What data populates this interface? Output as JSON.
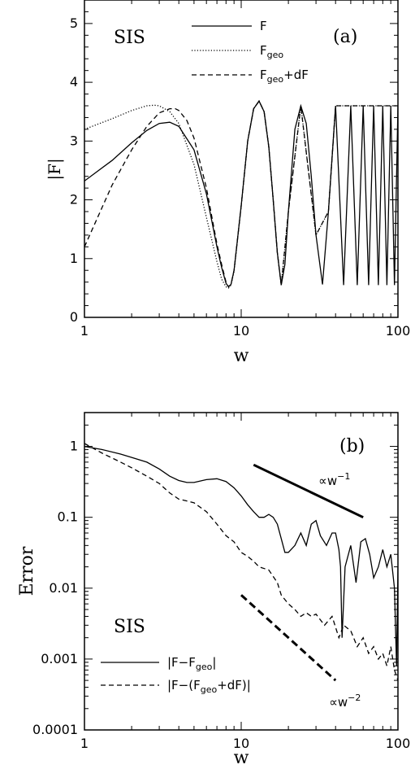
{
  "chart_data": [
    {
      "type": "line",
      "panel_label": "(a)",
      "annotation": "SIS",
      "xlabel": "w",
      "ylabel": "|F|",
      "xscale": "log",
      "xlim": [
        1,
        100
      ],
      "ylim": [
        0,
        5.4
      ],
      "xticks": [
        1,
        10,
        100
      ],
      "xtick_labels": [
        "1",
        "10",
        "100"
      ],
      "yticks": [
        0,
        1,
        2,
        3,
        4,
        5
      ],
      "ytick_labels": [
        "0",
        "1",
        "2",
        "3",
        "4",
        "5"
      ],
      "legend_position": "top-right",
      "series": [
        {
          "name": "F",
          "legend": {
            "main": "F",
            "sub": "",
            "tail": ""
          },
          "style": "solid",
          "x": [
            1,
            1.5,
            2,
            2.5,
            3,
            3.5,
            4,
            5,
            6,
            7,
            7.5,
            8,
            8.3,
            8.6,
            9,
            10,
            11,
            12,
            13,
            14,
            15,
            16,
            17,
            18,
            19,
            20,
            22,
            24,
            26,
            28,
            30,
            33,
            36,
            40,
            45,
            50,
            55,
            60,
            65,
            70,
            75,
            80,
            85,
            90,
            95,
            100
          ],
          "y": [
            2.32,
            2.67,
            2.97,
            3.18,
            3.3,
            3.32,
            3.25,
            2.85,
            2.1,
            1.2,
            0.85,
            0.58,
            0.52,
            0.56,
            0.8,
            1.9,
            3.0,
            3.55,
            3.68,
            3.5,
            2.9,
            2.0,
            1.1,
            0.55,
            0.9,
            1.8,
            3.2,
            3.6,
            3.3,
            2.4,
            1.4,
            0.56,
            1.8,
            3.6,
            0.55,
            3.6,
            0.55,
            3.6,
            0.55,
            3.6,
            0.55,
            3.6,
            0.55,
            3.6,
            0.55,
            3.6
          ]
        },
        {
          "name": "Fgeo",
          "legend": {
            "main": "F",
            "sub": "geo",
            "tail": ""
          },
          "style": "dotted",
          "x": [
            1,
            1.5,
            2,
            2.5,
            2.8,
            3,
            3.5,
            4,
            5,
            6,
            7,
            7.5,
            8,
            8.3,
            8.6,
            9,
            10,
            11,
            12,
            13,
            14,
            15,
            16,
            17,
            18,
            20,
            24,
            30,
            36,
            40,
            50,
            60,
            70,
            80,
            90,
            100
          ],
          "y": [
            3.2,
            3.38,
            3.52,
            3.6,
            3.61,
            3.6,
            3.5,
            3.3,
            2.6,
            1.7,
            0.95,
            0.65,
            0.52,
            0.5,
            0.55,
            0.78,
            1.9,
            3.0,
            3.55,
            3.68,
            3.5,
            2.9,
            2.0,
            1.1,
            0.55,
            1.8,
            3.6,
            1.4,
            1.8,
            3.6,
            3.6,
            3.6,
            3.6,
            3.6,
            3.6,
            3.6
          ]
        },
        {
          "name": "Fgeo+dF",
          "legend": {
            "main": "F",
            "sub": "geo",
            "tail": "+dF"
          },
          "style": "dashed",
          "x": [
            1,
            1.5,
            2,
            2.5,
            3,
            3.5,
            3.8,
            4,
            4.5,
            5,
            6,
            7,
            7.5,
            8,
            8.3,
            8.6,
            9,
            10,
            11,
            12,
            13,
            14,
            15,
            16,
            17,
            18,
            20,
            24,
            30,
            36,
            40,
            50,
            60,
            70,
            80,
            90,
            100
          ],
          "y": [
            1.2,
            2.25,
            2.85,
            3.25,
            3.48,
            3.55,
            3.55,
            3.52,
            3.35,
            3.05,
            2.2,
            1.25,
            0.9,
            0.6,
            0.52,
            0.56,
            0.8,
            1.9,
            3.0,
            3.55,
            3.68,
            3.5,
            2.9,
            2.0,
            1.1,
            0.55,
            1.8,
            3.6,
            1.4,
            1.8,
            3.6,
            3.6,
            3.6,
            3.6,
            3.6,
            3.6,
            3.6
          ]
        }
      ]
    },
    {
      "type": "line",
      "panel_label": "(b)",
      "annotation": "SIS",
      "xlabel": "w",
      "ylabel": "Error",
      "xscale": "log",
      "yscale": "log",
      "xlim": [
        1,
        100
      ],
      "ylim": [
        0.0001,
        3
      ],
      "xticks": [
        1,
        10,
        100
      ],
      "xtick_labels": [
        "1",
        "10",
        "100"
      ],
      "yticks": [
        0.0001,
        0.001,
        0.01,
        0.1,
        1
      ],
      "ytick_labels": [
        "0.0001",
        "0.001",
        "0.01",
        "0.1",
        "1"
      ],
      "legend_position": "bottom-left",
      "series": [
        {
          "name": "|F-Fgeo|",
          "legend": {
            "main": "|F−F",
            "sub": "geo",
            "tail": "|"
          },
          "style": "solid",
          "x": [
            1,
            1.3,
            1.7,
            2,
            2.5,
            3,
            3.5,
            4,
            4.5,
            5,
            6,
            7,
            8,
            9,
            10,
            11,
            12,
            13,
            14,
            15,
            16,
            17,
            18,
            19,
            20,
            22,
            24,
            26,
            28,
            30,
            32,
            35,
            38,
            40,
            42,
            43,
            44,
            46,
            50,
            54,
            58,
            62,
            66,
            70,
            75,
            80,
            85,
            90,
            95,
            98,
            100
          ],
          "y": [
            1.0,
            0.9,
            0.78,
            0.7,
            0.6,
            0.48,
            0.38,
            0.33,
            0.31,
            0.31,
            0.34,
            0.35,
            0.32,
            0.26,
            0.2,
            0.15,
            0.12,
            0.1,
            0.1,
            0.11,
            0.1,
            0.08,
            0.05,
            0.032,
            0.032,
            0.04,
            0.06,
            0.04,
            0.08,
            0.09,
            0.055,
            0.04,
            0.06,
            0.06,
            0.035,
            0.02,
            0.002,
            0.02,
            0.04,
            0.012,
            0.045,
            0.05,
            0.03,
            0.014,
            0.02,
            0.035,
            0.02,
            0.03,
            0.01,
            0.0008,
            0.02
          ]
        },
        {
          "name": "|F-(Fgeo+dF)|",
          "legend": {
            "main": "|F−(F",
            "sub": "geo",
            "tail": "+dF)|"
          },
          "style": "dashed",
          "x": [
            1,
            1.3,
            1.7,
            2,
            2.5,
            3,
            3.5,
            4,
            4.5,
            5,
            6,
            7,
            8,
            9,
            10,
            11,
            12,
            13,
            15,
            17,
            18,
            20,
            22,
            24,
            26,
            28,
            30,
            34,
            38,
            42,
            45,
            50,
            55,
            60,
            65,
            70,
            75,
            80,
            85,
            90,
            95,
            100
          ],
          "y": [
            1.1,
            0.8,
            0.6,
            0.5,
            0.38,
            0.3,
            0.22,
            0.18,
            0.17,
            0.16,
            0.12,
            0.08,
            0.055,
            0.045,
            0.032,
            0.028,
            0.024,
            0.02,
            0.018,
            0.012,
            0.008,
            0.006,
            0.005,
            0.004,
            0.0045,
            0.004,
            0.0043,
            0.003,
            0.004,
            0.002,
            0.003,
            0.0025,
            0.0015,
            0.002,
            0.0012,
            0.0015,
            0.001,
            0.0012,
            0.0008,
            0.0015,
            0.0007,
            0.0005
          ]
        }
      ],
      "reference_lines": [
        {
          "label": {
            "main": "∝w",
            "sup": "−1"
          },
          "x": [
            12,
            60
          ],
          "y": [
            0.55,
            0.1
          ]
        },
        {
          "label": {
            "main": "∝w",
            "sup": "−2"
          },
          "x": [
            10,
            40
          ],
          "y": [
            0.008,
            0.0005
          ]
        }
      ]
    }
  ]
}
